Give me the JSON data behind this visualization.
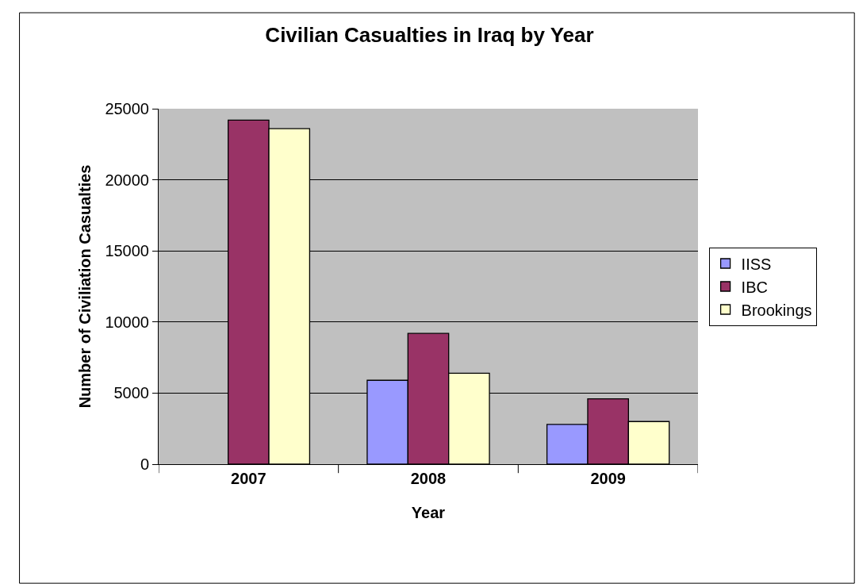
{
  "chart_data": {
    "type": "bar",
    "title": "Civilian Casualties in Iraq by Year",
    "xlabel": "Year",
    "ylabel": "Number of Civiliation Casualties",
    "categories": [
      "2007",
      "2008",
      "2009"
    ],
    "series": [
      {
        "name": "IISS",
        "color": "#9999ff",
        "values": [
          null,
          5900,
          2800
        ]
      },
      {
        "name": "IBC",
        "color": "#993366",
        "values": [
          24200,
          9200,
          4600
        ]
      },
      {
        "name": "Brookings",
        "color": "#ffffcc",
        "values": [
          23600,
          6400,
          3000
        ]
      }
    ],
    "ylim": [
      0,
      25000
    ],
    "yticks": [
      0,
      5000,
      10000,
      15000,
      20000,
      25000
    ],
    "grid": "y",
    "legend": "right"
  }
}
